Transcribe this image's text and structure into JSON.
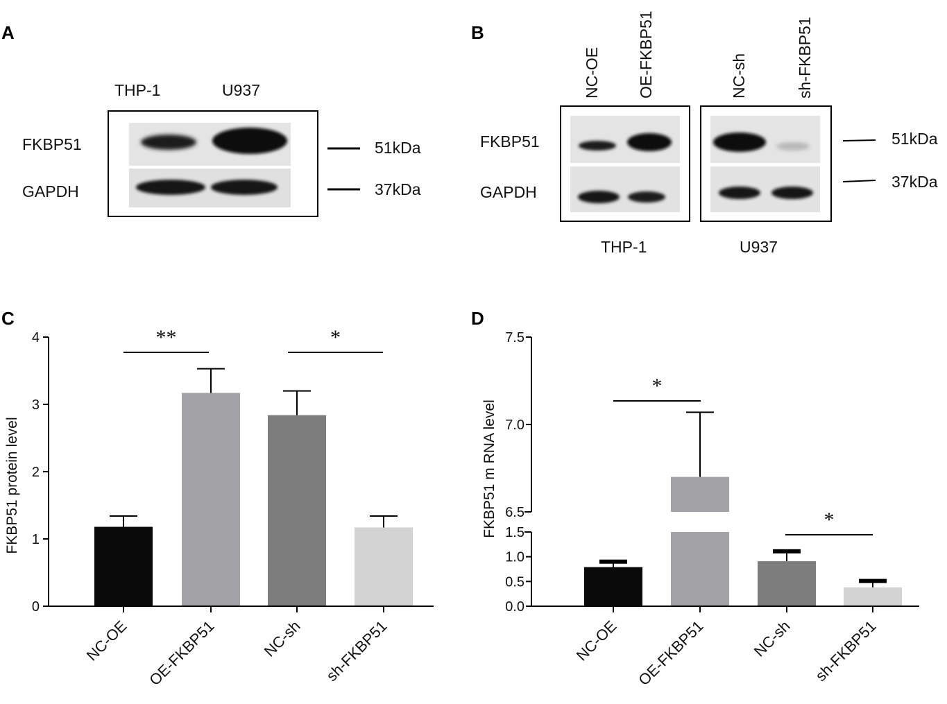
{
  "panels": {
    "A": "A",
    "B": "B",
    "C": "C",
    "D": "D"
  },
  "blot_a": {
    "lanes": [
      "THP-1",
      "U937"
    ],
    "rows": [
      "FKBP51",
      "GAPDH"
    ],
    "markers": [
      "51kDa",
      "37kDa"
    ]
  },
  "blot_b": {
    "lanes": [
      "NC-OE",
      "OE-FKBP51",
      "NC-sh",
      "sh-FKBP51"
    ],
    "rows": [
      "FKBP51",
      "GAPDH"
    ],
    "markers": [
      "51kDa",
      "37kDa"
    ],
    "groups": [
      "THP-1",
      "U937"
    ]
  },
  "colors": {
    "NC-OE": "#0a0a0a",
    "OE-FKBP51": "#a2a2a6",
    "NC-sh": "#7d7d7d",
    "sh-FKBP51": "#d2d2d2"
  },
  "chart_data": [
    {
      "panel": "C",
      "type": "bar",
      "categories": [
        "NC-OE",
        "OE-FKBP51",
        "NC-sh",
        "sh-FKBP51"
      ],
      "values": [
        1.18,
        3.17,
        2.84,
        1.17
      ],
      "errors": [
        0.16,
        0.36,
        0.36,
        0.17
      ],
      "ylabel": "FKBP51 protein level",
      "ylim": [
        0,
        4
      ],
      "yticks": [
        "0",
        "1",
        "2",
        "3",
        "4"
      ],
      "significance": [
        {
          "pair": [
            "NC-OE",
            "OE-FKBP51"
          ],
          "label": "**"
        },
        {
          "pair": [
            "NC-sh",
            "sh-FKBP51"
          ],
          "label": "*"
        }
      ]
    },
    {
      "panel": "D",
      "type": "bar",
      "categories": [
        "NC-OE",
        "OE-FKBP51",
        "NC-sh",
        "sh-FKBP51"
      ],
      "values": [
        0.79,
        6.7,
        0.91,
        0.38
      ],
      "errors": [
        0.11,
        0.37,
        0.2,
        0.13
      ],
      "ylabel": "FKBP51 m RNA level",
      "axis_break": {
        "lower": [
          0,
          1.5
        ],
        "upper": [
          6.5,
          7.5
        ]
      },
      "yticks_lower": [
        "0.0",
        "0.5",
        "1.0",
        "1.5"
      ],
      "yticks_upper": [
        "6.5",
        "7.0",
        "7.5"
      ],
      "significance": [
        {
          "pair": [
            "NC-OE",
            "OE-FKBP51"
          ],
          "label": "*"
        },
        {
          "pair": [
            "NC-sh",
            "sh-FKBP51"
          ],
          "label": "*"
        }
      ]
    }
  ]
}
